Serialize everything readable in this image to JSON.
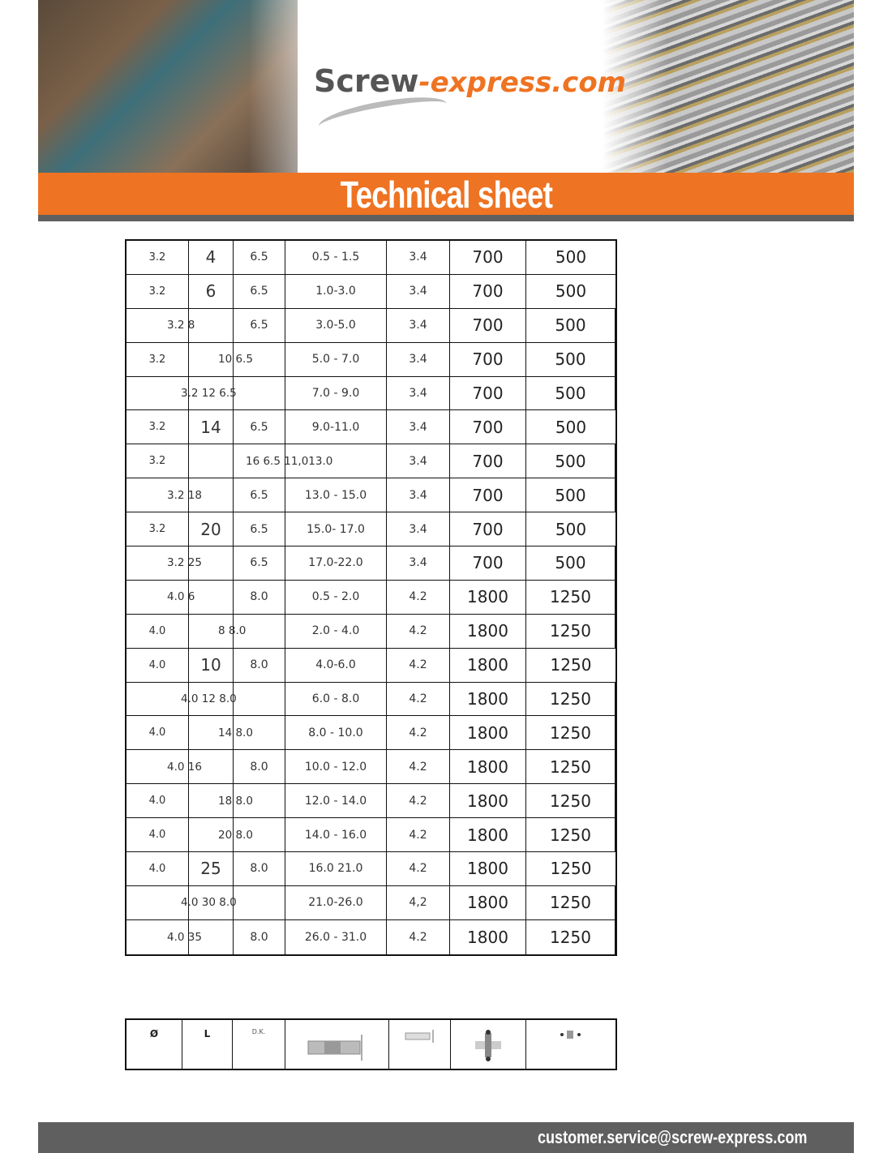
{
  "header": {
    "logo_main": "Screw",
    "logo_suffix": "-express.com",
    "title": "Technical sheet",
    "accent_color": "#ee7322",
    "bar_color": "#5f5f5f"
  },
  "table": {
    "rows": [
      {
        "cells": [
          "3.2",
          "4",
          "6.5",
          "0.5 - 1.5",
          "3.4",
          "700",
          "500"
        ]
      },
      {
        "cells": [
          "3.2",
          "6",
          "6.5",
          "1.0-3.0",
          "3.4",
          "700",
          "500"
        ]
      },
      {
        "cells": [
          "",
          "",
          "6.5",
          "3.0-5.0",
          "3.4",
          "700",
          "500"
        ],
        "merged": "3.2 8",
        "merge": "ab"
      },
      {
        "cells": [
          "3.2",
          "",
          "",
          "5.0 - 7.0",
          "3.4",
          "700",
          "500"
        ],
        "merged": "10 6.5",
        "merge": "bc"
      },
      {
        "cells": [
          "",
          "",
          "",
          "7.0 - 9.0",
          "3.4",
          "700",
          "500"
        ],
        "merged": "3.2 12 6.5",
        "merge": "abc"
      },
      {
        "cells": [
          "3.2",
          "14",
          "6.5",
          "9.0-11.0",
          "3.4",
          "700",
          "500"
        ]
      },
      {
        "cells": [
          "3.2",
          "",
          "",
          "",
          "3.4",
          "700",
          "500"
        ],
        "merged": "16 6.5 11,013.0",
        "merge": "cd"
      },
      {
        "cells": [
          "",
          "",
          "6.5",
          "13.0 - 15.0",
          "3.4",
          "700",
          "500"
        ],
        "merged": "3.2 18",
        "merge": "ab"
      },
      {
        "cells": [
          "3.2",
          "20",
          "6.5",
          "15.0- 17.0",
          "3.4",
          "700",
          "500"
        ]
      },
      {
        "cells": [
          "",
          "",
          "6.5",
          "17.0-22.0",
          "3.4",
          "700",
          "500"
        ],
        "merged": "3.2 25",
        "merge": "ab"
      },
      {
        "cells": [
          "",
          "",
          "8.0",
          "0.5 - 2.0",
          "4.2",
          "1800",
          "1250"
        ],
        "merged": "4.0 6",
        "merge": "ab"
      },
      {
        "cells": [
          "4.0",
          "",
          "",
          "2.0 - 4.0",
          "4.2",
          "1800",
          "1250"
        ],
        "merged": "8 8.0",
        "merge": "bc"
      },
      {
        "cells": [
          "4.0",
          "10",
          "8.0",
          "4.0-6.0",
          "4.2",
          "1800",
          "1250"
        ]
      },
      {
        "cells": [
          "",
          "",
          "",
          "6.0 - 8.0",
          "4.2",
          "1800",
          "1250"
        ],
        "merged": "4.0 12 8.0",
        "merge": "abc"
      },
      {
        "cells": [
          "4.0",
          "",
          "",
          "8.0 - 10.0",
          "4.2",
          "1800",
          "1250"
        ],
        "merged": "14 8.0",
        "merge": "bc"
      },
      {
        "cells": [
          "",
          "",
          "8.0",
          "10.0 - 12.0",
          "4.2",
          "1800",
          "1250"
        ],
        "merged": "4.0 16",
        "merge": "ab"
      },
      {
        "cells": [
          "4.0",
          "",
          "",
          "12.0 - 14.0",
          "4.2",
          "1800",
          "1250"
        ],
        "merged": "18 8.0",
        "merge": "bc"
      },
      {
        "cells": [
          "4.0",
          "",
          "",
          "14.0 - 16.0",
          "4.2",
          "1800",
          "1250"
        ],
        "merged": "20 8.0",
        "merge": "bc"
      },
      {
        "cells": [
          "4.0",
          "25",
          "8.0",
          "16.0 21.0",
          "4.2",
          "1800",
          "1250"
        ]
      },
      {
        "cells": [
          "",
          "",
          "",
          "21.0-26.0",
          "4,2",
          "1800",
          "1250"
        ],
        "merged": "4.0 30 8.0",
        "merge": "abc"
      },
      {
        "cells": [
          "",
          "",
          "8.0",
          "26.0 - 31.0",
          "4.2",
          "1800",
          "1250"
        ],
        "merged": "4.0 35",
        "merge": "ab"
      }
    ]
  },
  "legend": {
    "diameter": "Ø",
    "length": "L",
    "head": "D.K.",
    "icons": [
      "clamping-range-icon",
      "drill-hole-icon",
      "shear-strength-icon",
      "tensile-strength-icon"
    ]
  },
  "footer": {
    "email": "customer.service@screw-express.com"
  }
}
